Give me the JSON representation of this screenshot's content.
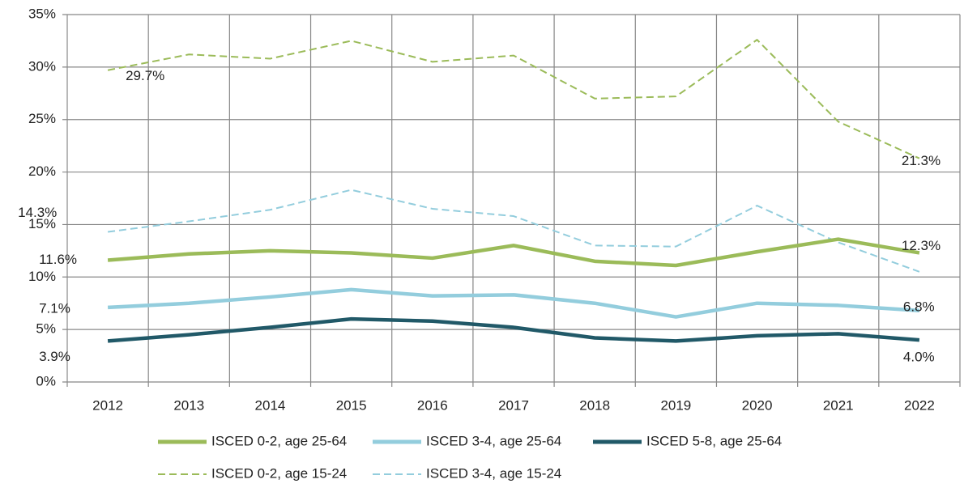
{
  "chart_data": {
    "type": "line",
    "categories": [
      "2012",
      "2013",
      "2014",
      "2015",
      "2016",
      "2017",
      "2018",
      "2019",
      "2020",
      "2021",
      "2022"
    ],
    "ylim": [
      0,
      35
    ],
    "yticks": [
      {
        "value": 0,
        "label": "0%"
      },
      {
        "value": 5,
        "label": "5%"
      },
      {
        "value": 10,
        "label": "10%"
      },
      {
        "value": 15,
        "label": "15%"
      },
      {
        "value": 20,
        "label": "20%"
      },
      {
        "value": 25,
        "label": "25%"
      },
      {
        "value": 30,
        "label": "30%"
      },
      {
        "value": 35,
        "label": "35%"
      }
    ],
    "grid": true,
    "series": [
      {
        "name": "ISCED 0-2, age 25-64",
        "color": "#9bbb59",
        "dash": false,
        "values": [
          11.6,
          12.2,
          12.5,
          12.3,
          11.8,
          13.0,
          11.5,
          11.1,
          12.4,
          13.6,
          12.3
        ],
        "value_labels": [
          "11.6%",
          null,
          null,
          null,
          null,
          null,
          null,
          null,
          null,
          null,
          "12.3%"
        ]
      },
      {
        "name": "ISCED 3-4, age 25-64",
        "color": "#93cddd",
        "dash": false,
        "values": [
          7.1,
          7.5,
          8.1,
          8.8,
          8.2,
          8.3,
          7.5,
          6.2,
          7.5,
          7.3,
          6.8
        ],
        "value_labels": [
          "7.1%",
          null,
          null,
          null,
          null,
          null,
          null,
          null,
          null,
          null,
          "6.8%"
        ]
      },
      {
        "name": "ISCED 5-8, age 25-64",
        "color": "#215968",
        "dash": false,
        "values": [
          3.9,
          4.5,
          5.2,
          6.0,
          5.8,
          5.2,
          4.2,
          3.9,
          4.4,
          4.6,
          4.0
        ],
        "value_labels": [
          "3.9%",
          null,
          null,
          null,
          null,
          null,
          null,
          null,
          null,
          null,
          "4.0%"
        ]
      },
      {
        "name": "ISCED 0-2, age 15-24",
        "color": "#9bbb59",
        "dash": true,
        "values": [
          29.7,
          31.2,
          30.8,
          32.5,
          30.5,
          31.1,
          27.0,
          27.2,
          32.6,
          24.8,
          21.3
        ],
        "value_labels": [
          "29.7%",
          null,
          null,
          null,
          null,
          null,
          null,
          null,
          null,
          null,
          "21.3%"
        ]
      },
      {
        "name": "ISCED 3-4, age 15-24",
        "color": "#93cddd",
        "dash": true,
        "values": [
          14.3,
          15.3,
          16.4,
          18.3,
          16.5,
          15.8,
          13.0,
          12.9,
          16.8,
          13.3,
          10.5
        ],
        "value_labels": [
          "14.3%",
          null,
          null,
          null,
          null,
          null,
          null,
          null,
          null,
          null,
          null
        ]
      }
    ]
  }
}
